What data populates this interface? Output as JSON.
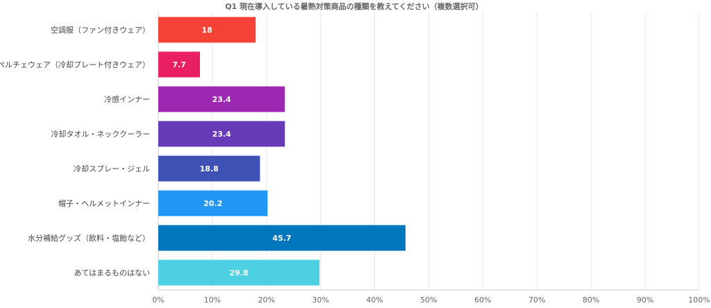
{
  "chart_data": {
    "type": "bar",
    "orientation": "horizontal",
    "title": "Q1 現在導入している暑熱対策商品の種類を教えてください（複数選択可）",
    "categories": [
      "空調服（ファン付きウェア）",
      "ペルチェウェア（冷却プレート付きウェア）",
      "冷感インナー",
      "冷却タオル・ネッククーラー",
      "冷却スプレー・ジェル",
      "帽子・ヘルメットインナー",
      "水分補給グッズ（飲料・塩飴など）",
      "あてはまるものはない"
    ],
    "values": [
      18,
      7.7,
      23.4,
      23.4,
      18.8,
      20.2,
      45.7,
      29.8
    ],
    "value_labels": [
      "18",
      "7.7",
      "23.4",
      "23.4",
      "18.8",
      "20.2",
      "45.7",
      "29.8"
    ],
    "colors": [
      "#f44336",
      "#e91e63",
      "#9c27b0",
      "#673ab7",
      "#3f51b5",
      "#2196f3",
      "#0077bd",
      "#4dd0e1"
    ],
    "xlim": [
      0,
      100
    ],
    "xticks": [
      0,
      10,
      20,
      30,
      40,
      50,
      60,
      70,
      80,
      90,
      100
    ],
    "xtick_labels": [
      "0%",
      "10%",
      "20%",
      "30%",
      "40%",
      "50%",
      "60%",
      "70%",
      "80%",
      "90%",
      "100%"
    ],
    "grid": true,
    "legend": "none"
  }
}
